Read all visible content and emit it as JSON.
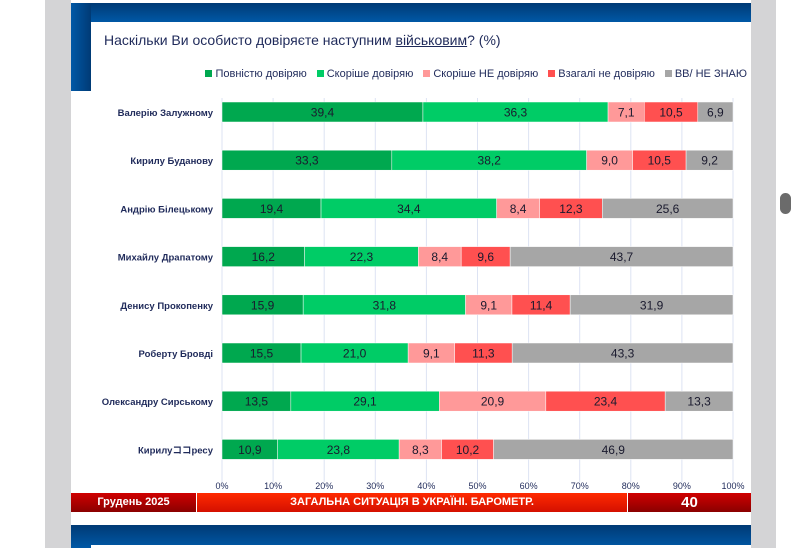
{
  "title_pre": "Наскільки Ви особисто довіряєте наступним ",
  "title_link": "військовим",
  "title_post": "? (%)",
  "footer": {
    "date": "Грудень 2025",
    "center": "ЗАГАЛЬНА СИТУАЦІЯ В УКРАЇНІ. БАРОМЕТР.",
    "page": "40"
  },
  "chart_data": {
    "type": "bar",
    "orientation": "horizontal-stacked-100",
    "title": "Наскільки Ви особисто довіряєте наступним військовим? (%)",
    "legend_position": "top-right",
    "colors": [
      "#00a84f",
      "#00cc66",
      "#ff9999",
      "#ff5050",
      "#a6a6a6"
    ],
    "categories": [
      "Валерію Залужному",
      "Кирилу Буданову",
      "Андрію Білецькому",
      "Михайлу Драпатому",
      "Денису Прокопенку",
      "Роберту Бровді",
      "Олександру Сирському",
      "Кирилуココресу"
    ],
    "series": [
      {
        "name": "Повністю довіряю",
        "values": [
          39.4,
          33.3,
          19.4,
          16.2,
          15.9,
          15.5,
          13.5,
          10.9
        ]
      },
      {
        "name": "Скоріше довіряю",
        "values": [
          36.3,
          38.2,
          34.4,
          22.3,
          31.8,
          21.0,
          29.1,
          23.8
        ]
      },
      {
        "name": "Скоріше НЕ довіряю",
        "values": [
          7.1,
          9.0,
          8.4,
          8.4,
          9.1,
          9.1,
          20.9,
          8.3
        ]
      },
      {
        "name": "Взагалі не  довіряю",
        "values": [
          10.5,
          10.5,
          12.3,
          9.6,
          11.4,
          11.3,
          23.4,
          10.2
        ]
      },
      {
        "name": "ВВ/ НЕ ЗНАЮ",
        "values": [
          6.9,
          9.2,
          25.6,
          43.7,
          31.9,
          43.3,
          13.3,
          46.9
        ]
      }
    ],
    "xticks": [
      "0%",
      "10%",
      "20%",
      "30%",
      "40%",
      "50%",
      "60%",
      "70%",
      "80%",
      "90%",
      "100%"
    ],
    "xlim": [
      0,
      100
    ],
    "grid": true
  }
}
